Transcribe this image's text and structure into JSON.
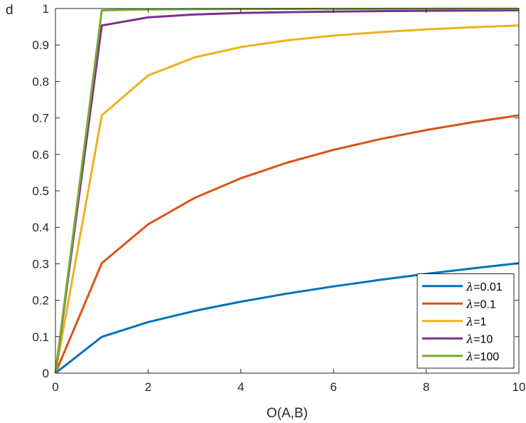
{
  "chart_data": {
    "type": "line",
    "title": "",
    "xlabel": "O(A,B)",
    "ylabel": "d",
    "xlim": [
      0,
      10
    ],
    "ylim": [
      0,
      1
    ],
    "grid": false,
    "legend_position": "bottom-right",
    "x_ticks": [
      "0",
      "2",
      "4",
      "6",
      "8",
      "10"
    ],
    "y_ticks": [
      "0",
      "0.1",
      "0.2",
      "0.3",
      "0.4",
      "0.5",
      "0.6",
      "0.7",
      "0.8",
      "0.9",
      "1"
    ],
    "x": [
      0,
      1,
      2,
      3,
      4,
      5,
      6,
      7,
      8,
      9,
      10
    ],
    "series": [
      {
        "name": "=0.01",
        "lambda_symbol": "λ",
        "color": "#0072BD",
        "values": [
          0,
          0.0995,
          0.14,
          0.1706,
          0.1961,
          0.2182,
          0.2379,
          0.2558,
          0.2722,
          0.2874,
          0.3015
        ]
      },
      {
        "name": "=0.1",
        "lambda_symbol": "λ",
        "color": "#D95319",
        "values": [
          0,
          0.3015,
          0.4082,
          0.4804,
          0.5345,
          0.5774,
          0.6124,
          0.6417,
          0.6667,
          0.6882,
          0.7071
        ]
      },
      {
        "name": "=1",
        "lambda_symbol": "λ",
        "color": "#EDB120",
        "values": [
          0,
          0.7071,
          0.8165,
          0.866,
          0.8944,
          0.9129,
          0.9258,
          0.9354,
          0.9428,
          0.9487,
          0.9535
        ]
      },
      {
        "name": "=10",
        "lambda_symbol": "λ",
        "color": "#7E2F8E",
        "values": [
          0,
          0.9535,
          0.9759,
          0.9837,
          0.9877,
          0.9901,
          0.9918,
          0.9929,
          0.9938,
          0.9945,
          0.995
        ]
      },
      {
        "name": "=100",
        "lambda_symbol": "λ",
        "color": "#77AC30",
        "values": [
          0,
          0.995,
          0.9975,
          0.9983,
          0.9988,
          0.999,
          0.9992,
          0.9993,
          0.9994,
          0.9994,
          0.9995
        ]
      }
    ]
  }
}
